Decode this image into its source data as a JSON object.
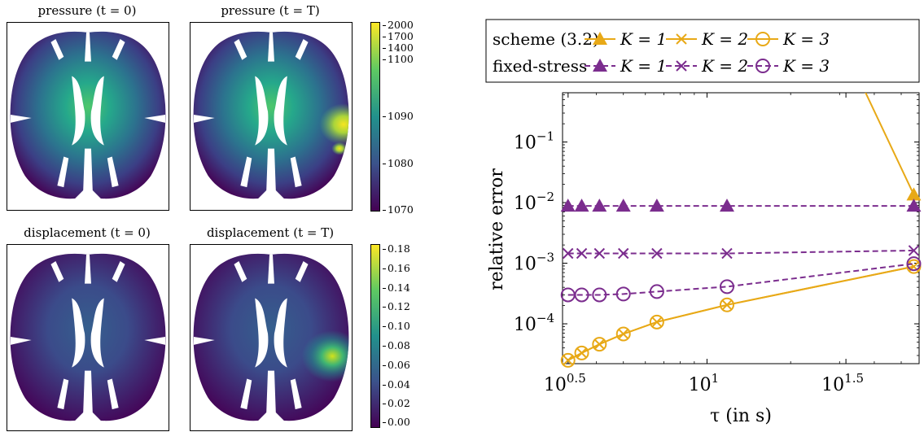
{
  "panels": [
    {
      "title": "pressure (t = 0)"
    },
    {
      "title": "pressure (t = T)"
    },
    {
      "title": "displacement (t = 0)"
    },
    {
      "title": "displacement (t = T)"
    }
  ],
  "colorbars": {
    "pressure": [
      "2000",
      "1700",
      "1400",
      "1100",
      "1090",
      "1080",
      "1070"
    ],
    "displacement": [
      "0.18",
      "0.16",
      "0.14",
      "0.12",
      "0.10",
      "0.08",
      "0.06",
      "0.04",
      "0.02",
      "0.00"
    ]
  },
  "colormap": [
    "#440154",
    "#3b528b",
    "#21918c",
    "#5ec962",
    "#fde725"
  ],
  "chart_data": {
    "type": "line",
    "xlabel": "τ (in s)",
    "ylabel": "relative error",
    "x_scale": "log",
    "y_scale": "log",
    "xlim": [
      3.02,
      58
    ],
    "ylim": [
      2.2e-05,
      0.65
    ],
    "x_ticks": [
      {
        "value": 3.1623,
        "base": "10",
        "exp": "0.5"
      },
      {
        "value": 10,
        "base": "10",
        "exp": "1"
      },
      {
        "value": 31.623,
        "base": "10",
        "exp": "1.5"
      }
    ],
    "y_ticks": [
      {
        "value": 0.1,
        "base": "10",
        "exp": "−1"
      },
      {
        "value": 0.01,
        "base": "10",
        "exp": "−2"
      },
      {
        "value": 0.001,
        "base": "10",
        "exp": "−3"
      },
      {
        "value": 0.0001,
        "base": "10",
        "exp": "−4"
      }
    ],
    "legend": {
      "position": "top",
      "row_labels": [
        "scheme (3.2)",
        "fixed-stress"
      ],
      "entries": [
        "K = 1",
        "K = 2",
        "K = 3"
      ]
    },
    "series": [
      {
        "group": "scheme (3.2)",
        "name": "K = 1",
        "color": "#e8a917",
        "dash": "solid",
        "marker": "triangle",
        "x": [
          36,
          55.5
        ],
        "y": [
          0.9,
          0.0135
        ]
      },
      {
        "group": "scheme (3.2)",
        "name": "K = 2",
        "color": "#e8a917",
        "dash": "solid",
        "marker": "x",
        "x": [
          3.16,
          3.54,
          4.1,
          5.0,
          6.6,
          11.8,
          55.5
        ],
        "y": [
          2.5e-05,
          3.3e-05,
          4.6e-05,
          6.8e-05,
          0.000107,
          0.000205,
          0.00088
        ]
      },
      {
        "group": "scheme (3.2)",
        "name": "K = 3",
        "color": "#e8a917",
        "dash": "solid",
        "marker": "circle",
        "x": [
          3.16,
          3.54,
          4.1,
          5.0,
          6.6,
          11.8,
          55.5
        ],
        "y": [
          2.5e-05,
          3.3e-05,
          4.6e-05,
          6.8e-05,
          0.000107,
          0.000205,
          0.00088
        ]
      },
      {
        "group": "fixed-stress",
        "name": "K = 1",
        "color": "#7b2d8e",
        "dash": "dashed",
        "marker": "triangle",
        "x": [
          3.16,
          3.54,
          4.1,
          5.0,
          6.6,
          11.8,
          55.5
        ],
        "y": [
          0.0088,
          0.0088,
          0.0088,
          0.0088,
          0.0088,
          0.0088,
          0.0088
        ]
      },
      {
        "group": "fixed-stress",
        "name": "K = 2",
        "color": "#7b2d8e",
        "dash": "dashed",
        "marker": "x",
        "x": [
          3.16,
          3.54,
          4.1,
          5.0,
          6.6,
          11.8,
          55.5
        ],
        "y": [
          0.00145,
          0.00145,
          0.00145,
          0.00145,
          0.00145,
          0.00145,
          0.00162
        ]
      },
      {
        "group": "fixed-stress",
        "name": "K = 3",
        "color": "#7b2d8e",
        "dash": "dashed",
        "marker": "circle",
        "x": [
          3.16,
          3.54,
          4.1,
          5.0,
          6.6,
          11.8,
          55.5
        ],
        "y": [
          0.0003,
          0.0003,
          0.0003,
          0.00031,
          0.00034,
          0.00041,
          0.00098
        ]
      }
    ]
  }
}
